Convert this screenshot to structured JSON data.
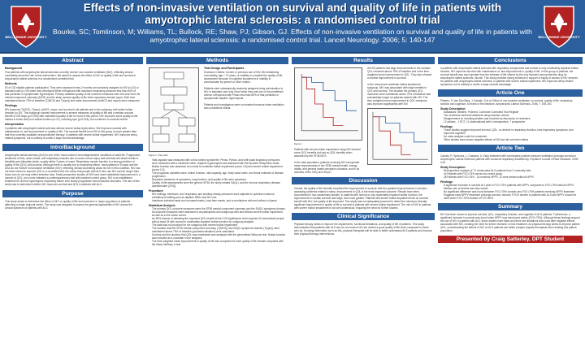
{
  "header": {
    "title": "Effects of non-invasive ventilation on survival and quality of life in patients with amyotrophic lateral sclerosis: a randomised control trial",
    "citation": "Bourke, SC; Tomlinson, M; Williams, TL; Bullock, RE; Shaw, PJ; Gibson, GJ. Effects of non-invasive ventilation on survival and quality of life in patients with amyotrophic lateral sclerosis: a randomised control trial. Lancet Neurology. 2006; 5: 140-147",
    "logo_text": "BELLARMINE UNIVERSITY"
  },
  "col1": {
    "abstract": {
      "heading": "Abstract",
      "sub_background": "Background",
      "background": "Few patients with amyotrophic lateral sclerosis currently receive non-invasive ventilation (NIV), reflecting clinical uncertainty about the role of this intervention. We aimed to assess the effect of NIV on quality of life and survival in amyotrophic lateral sclerosis in a randomised controlled trial.",
      "sub_methods": "Methods",
      "methods": "92 of 102 eligible patients participated. They were assessed every 2 months and randomly assigned to NIV (n=22) or standard care (n=19) when they developed either orthopnoea with maximum inspiratory pressure less than 60% of that predicted or symptomatic hypercapnia. Primary validated quality-of-life outcome measures were the short form 36 mental component summary (MCS) and the sleep apnoea quality-of-life index symptoms domain (sym). Both time maintained above 75% of baseline (T(MCS) and T(sym)) and mean improvement (mMCS and msym) were measured.",
      "sub_findings": "Findings",
      "findings": "NIV improved T(MCS), T(sym), mMCS, msym, and survival in all patients and in the subgroup with better bulbar function (n=20). This subgroup showed improvement in several measures of quality of life and a median survival benefit of 205 days (p=0.006) with maintained quality of life for most of this period. NIV improved some quality-of-life indices in those with poor bulbar function (n=21), including sym (p=0.018), but conferred no survival benefit.",
      "sub_interpretation": "Interpretation",
      "interpretation": "In patients with amyotrophic lateral sclerosis without severe bulbar dysfunction, NIV improves survival with maintenance of, and improvement in, quality of life. The survival benefit from NIV in this group is much greater than that from currently available neuroprotective therapy. In patients with severe bulbar impairment, NIV improves sleep-related symptoms, but is unlikely to confer a large survival advantage."
    },
    "intro": {
      "heading": "Intro/Background",
      "text": "Amyotrophic lateral sclerosis (ALS) is one of the most common neurodegenerative conditions of adult life. Progressive weakness of limb, axial, bulbar, and respiratory muscles due to motor neuron injury and eventual cell death results in disability and ultimately death, usually within 3 years of onset. Respiratory muscle function is a strong predictor of quality of life (QOL) and survival. Although there is usually due to respiratory failure, most patients in Europe and the USA do not receive non-invasive ventilation (NIV), reflecting clinical uncertainty about its role in this condition. NIV has not been shown to improve QOL in a controlled trial; the notion that people with ALS who use NIV survive longer than those who do not may reflect selection bias. Small prospective studies of NIV have used established improvement in a domain of QOL, but a new indicated a contemporaneous trial with matched control group. NIV is an established treatment for chronic hypercapnic respiratory failure from slowly progressive neuromuscular disorders. The aim of this study was to determine whether NIV improves survival and QOL in patients with ALS."
    },
    "purpose": {
      "heading": "Purpose",
      "text": "This study aimed to determine the effect of NIV on quality of life and survival in a Japan population of patients attending a single regional centre. The study was designed to assess the general applicability of NIV across the clinical spectrum of patients with ALS."
    }
  },
  "col2": {
    "methods": {
      "heading": "Methods",
      "sub_design": "Trial Design and Participants",
      "design": "Exclusion Criteria: Current or previous use of NIV, life-threatening comorbidity, age < 70 years, or inability to complete the quality of life assessment because of cognitive impairment or inability to communicate by speech or other means.\n\nPatients were subsequently randomly assigned using minimization to NIV or standard care only if and when they met one of the predefined criteria: orthopnoea with Pimax less than 60% of that predicted or symptomatic daytime hypercapnia.\n\nPatients and investigators were not masked because sham ventilation was considered ethical.",
      "figure_caption": "Figure 1: Trial profile",
      "bullets": [
        "Vital capacity was measured with a flow turbine spirometer. Pimax, Pymax, and sniff nasal inspiratory pressures were measured with a handheld meter. Daytime hypercapnia was assessed with the Epworth Sleepiness Scale.",
        "Bulbar function was assessed as normal to moderate bulbar impairment (score 4-6) and severe bulbar impairment (score 0-3).",
        "The prognostic variables were: bulbar function, vital capacity, age, body mass index, and linear estimate of disease progression.",
        "Repeated measures of symptoms, lung function, and quality of life were assessed.",
        "Quality of life assessments were the generic SF36, the sleep related SAQLI, and the chronic respiratory disease questionnaire (CRQ)."
      ],
      "sub_procedure": "Procedure",
      "procedure": [
        "NIV settings, interfaces, and respiratory and ancillary airway pressures were adjusted to optimise nocturnal ventilatory breathing pool as daytime ABGs and NIV use.",
        "Interfaces included nasal and oronasal masks, local face masks, and a mouthpiece with and without a lipseal."
      ],
      "sub_stats": "Statistical Analysis",
      "stats": [
        "The primary QOL outcome measures were the SF36 mental component summary and the SAQLI symptoms domain.",
        "All outcome measures were assessed in all participants and subgroups with and without severe bulbar impairment, as well as in the whole cohort.",
        "An 80% chance of detecting the expected QOL benefit at the 0.05 significance level required 40 randomised people with at least 18 with normal or moderately impaired bulbar function for subgroup analysis.",
        "The data was not provided for the subgroup with severe bulbar impairment.",
        "The duration that the SF36 mental component summary (T(MCS)) and SAQLI symptoms domain (T(sym)) were maintained above 75% of baseline (postrandomisation) were calculated.",
        "Survival and the duration that QOL was maintained was analysed with the generalised Wilcoxon test. Bulbar function was included as a covariate in the analyses.",
        "The time-weighted mean improvement in quality of life was computed for each quality of life domain compared with the Mann-Whitney U test."
      ]
    }
  },
  "col3": {
    "results": {
      "heading": "Results",
      "text_a": "All NIV patients had large improvements in the duration QOL remained above 75% of baseline and in the time-weighted mean improvement in QOL. They also showed a modest improvement in survival.\n\nIn the normal and moderate bulbar impairment subgroup, NIV was associated with large benefits in QOL and survival. The duration the primary QOL measures were maintained above 75% of baseline was substantially longer for patients treated with NIV. The time weighted mean improvement in QOL measures also improved significantly with NIV.",
      "figure_caption": "Figure 2",
      "text_b": "Patients with severe bulbar impairment using NIV showed some QOL benefits but had no QOL benefits when assessed by the SF36 MCS.\n\nIn the total population, patients receiving NIV had greater mean improvements in the SF36 mental health, energy vitality, and general health perception domains, and in all domains of the CRQ and SAQLI."
    },
    "discussion": {
      "heading": "Discussion",
      "text": "Overall, the quality of life benefits exceeded the improvement in survival, with the greatest improvements in domains assessing problems related to sleep. Improvement in QOL is the most important outcome. Results have been documented in non-randomised studies. In patients with normal or only moderately impaired bulbar function, the improvement in median survival was large, and much greater. Patients with severe bulbar impairment had no survival benefit with NIV, but quality of life improved. This study was not adequately powered to detect the minimum clinically significant improvement in quality of life or survival in patients with severe bulbar impairment. The role of NIV in patients with severe bulbar impairment is not well understood, requiring the need for further studies."
    },
    "clinical": {
      "heading": "Clinical Significance",
      "text": "Physical therapy seeks to improve the impairments, functional limitations, and quality of life of patients. This study demonstrates that patients with ALS who do not receive NIV are denied a good quality of life when compared to those who do. Knowing information such as this, physical therapists will be able to better understand ALS patients and improve their physical therapy interventions."
    }
  },
  "col4": {
    "conclusions": {
      "heading": "Conclusions",
      "text": "In patients with amyotrophic lateral sclerosis with respiratory compromise and normal or only moderately impaired bulbar function, NIV improves survival with maintenance of, and improvement in, quality of life. In this group of patients, the survival benefit was much greater than the estimate of life offered by the only licensed neuroprotective drug for amyotrophic lateral sclerosis, riluzole. This study provides strong evidence in support of equity of access to NIV services for patients with amyotrophic lateral sclerosis. In patients with severe bulbar impairment, NIV improves sleep related symptoms, but is unlikely to confer a large survival advantage."
    },
    "article_one": {
      "heading": "Article One",
      "citation": "Piepers, S; Van Den Berg, J; Kalmijn, S et al. Effect of non-invasive ventilation on survival, quality of life, respiratory function and cognition: A review of the literature. Amyotrophic Lateral Sclerosis. 2006; 7: 195-200.",
      "sub_desc": "Study Description",
      "desc": [
        "Databases: Medline, Pubmed, Cochrane Controlled Trial Register",
        "Two reviewers screened abstracts using inclusion criteria",
        "Disagreement on including studies was resolved by discussion of reviewers",
        "12 articles - 1 RCT, 11 observational with 4 retrospective, 7 prospective"
      ],
      "sub_find": "Findings",
      "find": [
        "These studies suggest improved survival, QOL, no decline in respiratory function, less respiratory symptoms, and improved cognition",
        "No meta-analysis could be conducted",
        "Other studies have shown negative effects of NIV but did not meet criteria"
      ]
    },
    "article_two": {
      "heading": "Article Two",
      "citation": "Carratu, P; Spicuzza, L; Cassano, A. Early treatment with noninvasive positive pressure ventilation prolongs survival in Amyotrophic Lateral Sclerosis patients with nocturnal respiratory insufficiency. Orphanet Journal of Rare Diseases. 2009; 4:10",
      "sub_desc": "Study Description",
      "desc": [
        "Retrospective analysis of 72 consecutive ALS patients from 2 university labs",
        "44 Patients with FVC<75% served as control group",
        "28 Patients with FVC>75% - 16 received NPPV, 12 were treated without NPPV"
      ],
      "sub_find": "Findings",
      "find": [
        "A significant increase in survival at 1 year in FVC<75% patients with NPPV compared to FVC<75% without NPPV. Median rate of decline was also slower",
        "No significant difference was found between FVC>75% controls and FVC<75% patients receiving NPPV treatment",
        "Suggests early NPPV treatment prolongs survival, reduces FVC% decline in patients with ALS and NPPV should be used when FVC<75% instead of FVC<50%"
      ]
    },
    "summary": {
      "heading": "Summary",
      "text": "NIV has been shown to improve survival, QOL, respiratory function, and cognition in ALS patients. Furthermore, a significant increase in survival was found when NPPV was introduced earlier (FVC<75%). Although these findings support the use of NIV in patients with ALS, these studies have flaws and there are limitations that could alter negative effects associated with NIV, creating the need for further research on this treatment. As physical therapy seeks to improve patient QOL, understanding the effects of NIV on ALS patients can better prepare physical therapists when treating this patient population."
    },
    "footer": "Presented by Craig Satterley, DPT Student"
  },
  "colors": {
    "header": "#2b5f9e",
    "footer": "#b22222"
  }
}
